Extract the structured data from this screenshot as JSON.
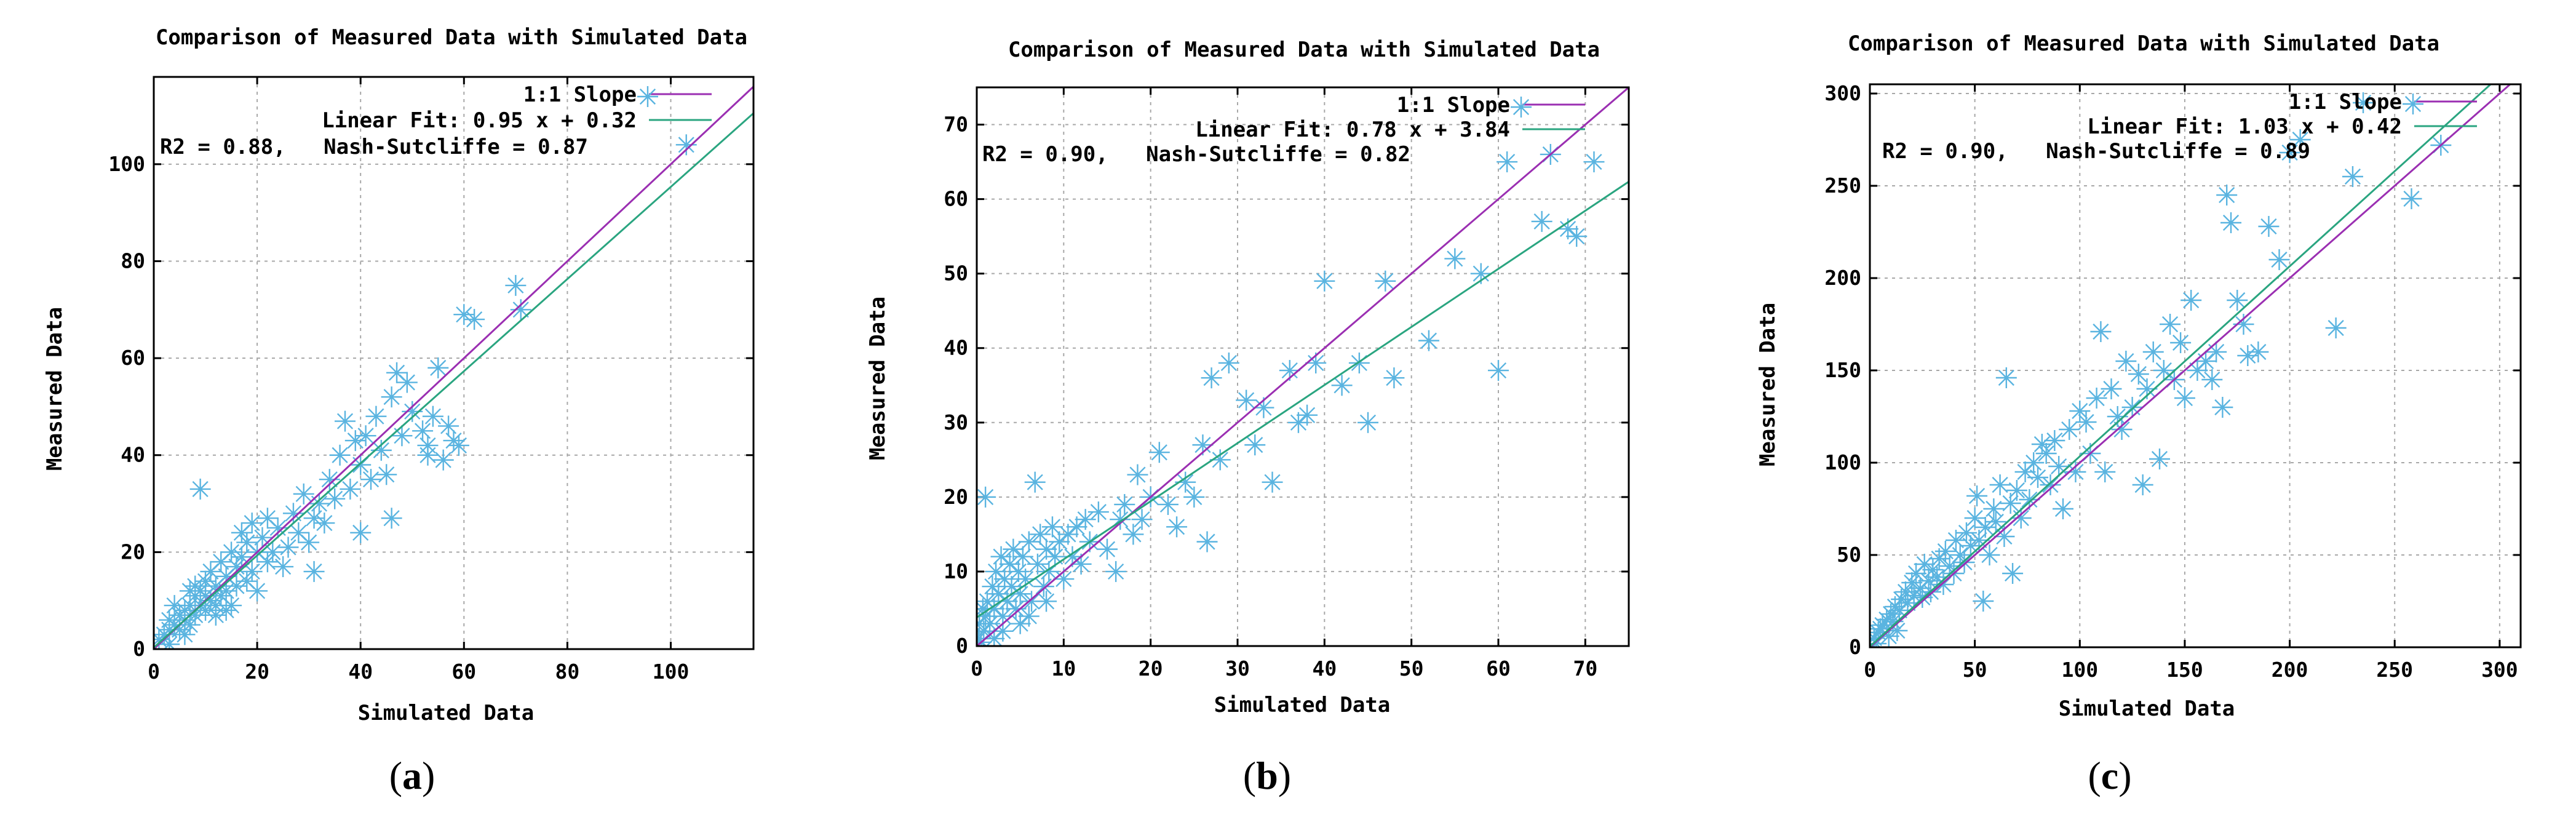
{
  "figure": {
    "panels": [
      "a",
      "b",
      "c"
    ],
    "captions": [
      {
        "open": "(",
        "letter": "a",
        "close": ")"
      },
      {
        "open": "(",
        "letter": "b",
        "close": ")"
      },
      {
        "open": "(",
        "letter": "c",
        "close": ")"
      }
    ]
  },
  "colors": {
    "scatter": "#5ab4e0",
    "slope_line": "#9b2fb2",
    "fit_line": "#2aa580",
    "grid": "#a8a8a8"
  },
  "chart_data": [
    {
      "type": "scatter",
      "title": "Comparison of Measured Data with Simulated Data",
      "xlabel": "Simulated Data",
      "ylabel": "Measured Data",
      "xlim": [
        0,
        116
      ],
      "ylim": [
        0,
        118
      ],
      "xticks": [
        0,
        20,
        40,
        60,
        80,
        100
      ],
      "yticks": [
        0,
        20,
        40,
        60,
        80,
        100
      ],
      "legend": [
        {
          "label": "1:1 Slope",
          "kind": "line",
          "color": "#9b2fb2"
        },
        {
          "label": "Linear Fit: 0.95 x + 0.32",
          "kind": "line",
          "color": "#2aa580"
        }
      ],
      "legend_marker_label": "1:1 Slope",
      "stats_text": "R2 = 0.88,   Nash-Sutcliffe = 0.87",
      "fit": {
        "slope": 0.95,
        "intercept": 0.32
      },
      "points": [
        [
          1,
          2
        ],
        [
          2,
          3
        ],
        [
          3,
          4
        ],
        [
          3,
          6
        ],
        [
          4,
          5
        ],
        [
          5,
          7
        ],
        [
          5,
          4
        ],
        [
          6,
          8
        ],
        [
          6,
          6
        ],
        [
          7,
          9
        ],
        [
          7,
          5
        ],
        [
          8,
          11
        ],
        [
          8,
          7
        ],
        [
          9,
          12
        ],
        [
          9,
          9
        ],
        [
          10,
          14
        ],
        [
          10,
          8
        ],
        [
          11,
          10
        ],
        [
          11,
          16
        ],
        [
          12,
          13
        ],
        [
          12,
          9
        ],
        [
          13,
          11
        ],
        [
          13,
          18
        ],
        [
          14,
          15
        ],
        [
          14,
          12
        ],
        [
          15,
          20
        ],
        [
          15,
          9
        ],
        [
          16,
          17
        ],
        [
          16,
          13
        ],
        [
          17,
          24
        ],
        [
          17,
          19
        ],
        [
          18,
          14
        ],
        [
          18,
          22
        ],
        [
          19,
          16
        ],
        [
          19,
          26
        ],
        [
          20,
          20
        ],
        [
          20,
          12
        ],
        [
          21,
          23
        ],
        [
          22,
          18
        ],
        [
          22,
          27
        ],
        [
          23,
          20
        ],
        [
          24,
          25
        ],
        [
          25,
          17
        ],
        [
          26,
          21
        ],
        [
          27,
          28
        ],
        [
          28,
          24
        ],
        [
          29,
          32
        ],
        [
          30,
          22
        ],
        [
          31,
          16
        ],
        [
          31,
          27
        ],
        [
          32,
          30
        ],
        [
          33,
          26
        ],
        [
          34,
          35
        ],
        [
          35,
          31
        ],
        [
          36,
          40
        ],
        [
          37,
          47
        ],
        [
          38,
          33
        ],
        [
          39,
          43
        ],
        [
          40,
          38
        ],
        [
          40,
          24
        ],
        [
          41,
          44
        ],
        [
          42,
          35
        ],
        [
          43,
          48
        ],
        [
          44,
          41
        ],
        [
          45,
          36
        ],
        [
          46,
          52
        ],
        [
          46,
          27
        ],
        [
          47,
          57
        ],
        [
          48,
          44
        ],
        [
          49,
          55
        ],
        [
          50,
          49
        ],
        [
          52,
          45
        ],
        [
          53,
          42
        ],
        [
          53,
          40
        ],
        [
          54,
          48
        ],
        [
          55,
          58
        ],
        [
          56,
          39
        ],
        [
          57,
          46
        ],
        [
          58,
          43
        ],
        [
          59,
          42
        ],
        [
          60,
          69
        ],
        [
          62,
          68
        ],
        [
          70,
          75
        ],
        [
          71,
          70
        ],
        [
          103,
          104
        ],
        [
          9,
          33
        ],
        [
          4,
          9
        ],
        [
          6,
          3
        ],
        [
          3,
          1
        ],
        [
          7,
          12
        ],
        [
          8,
          13
        ],
        [
          10,
          11
        ],
        [
          12,
          7
        ],
        [
          14,
          8
        ]
      ]
    },
    {
      "type": "scatter",
      "title": "Comparison of Measured Data with Simulated Data",
      "xlabel": "Simulated Data",
      "ylabel": "Measured Data",
      "xlim": [
        0,
        75
      ],
      "ylim": [
        0,
        75
      ],
      "xticks": [
        0,
        10,
        20,
        30,
        40,
        50,
        60,
        70
      ],
      "yticks": [
        0,
        10,
        20,
        30,
        40,
        50,
        60,
        70
      ],
      "legend": [
        {
          "label": "1:1 Slope",
          "kind": "line",
          "color": "#9b2fb2"
        },
        {
          "label": "Linear Fit: 0.78 x + 3.84",
          "kind": "line",
          "color": "#2aa580"
        }
      ],
      "legend_marker_label": "1:1 Slope",
      "stats_text": "R2 = 0.90,   Nash-Sutcliffe = 0.82",
      "fit": {
        "slope": 0.78,
        "intercept": 3.84
      },
      "points": [
        [
          0.2,
          1
        ],
        [
          0.3,
          3
        ],
        [
          0.5,
          0.5
        ],
        [
          0.7,
          5
        ],
        [
          0.8,
          2
        ],
        [
          1,
          4
        ],
        [
          1,
          20
        ],
        [
          1.2,
          6
        ],
        [
          1.5,
          3
        ],
        [
          1.8,
          8
        ],
        [
          2,
          5
        ],
        [
          2.2,
          10
        ],
        [
          2.5,
          7
        ],
        [
          2.8,
          12
        ],
        [
          3,
          4
        ],
        [
          3.2,
          9
        ],
        [
          3.5,
          6
        ],
        [
          3.8,
          11
        ],
        [
          4,
          8
        ],
        [
          4.2,
          13
        ],
        [
          4.5,
          5
        ],
        [
          4.8,
          10
        ],
        [
          5,
          7
        ],
        [
          5.3,
          12
        ],
        [
          5.6,
          9
        ],
        [
          6,
          14
        ],
        [
          6.3,
          6
        ],
        [
          6.7,
          22
        ],
        [
          7,
          11
        ],
        [
          7.3,
          15
        ],
        [
          7.7,
          8
        ],
        [
          8,
          13
        ],
        [
          8.3,
          10
        ],
        [
          8.7,
          16
        ],
        [
          9,
          12
        ],
        [
          9.5,
          14
        ],
        [
          10,
          9
        ],
        [
          10.5,
          15
        ],
        [
          11,
          12
        ],
        [
          11.5,
          16
        ],
        [
          12,
          11
        ],
        [
          12.5,
          17
        ],
        [
          13,
          14
        ],
        [
          14,
          18
        ],
        [
          15,
          13
        ],
        [
          16,
          10
        ],
        [
          16.5,
          17
        ],
        [
          17,
          19
        ],
        [
          18,
          15
        ],
        [
          18.5,
          23
        ],
        [
          19,
          17
        ],
        [
          20,
          20
        ],
        [
          21,
          26
        ],
        [
          22,
          19
        ],
        [
          23,
          16
        ],
        [
          24,
          22
        ],
        [
          25,
          20
        ],
        [
          26,
          27
        ],
        [
          26.5,
          14
        ],
        [
          27,
          36
        ],
        [
          28,
          25
        ],
        [
          29,
          38
        ],
        [
          31,
          33
        ],
        [
          32,
          27
        ],
        [
          33,
          32
        ],
        [
          34,
          22
        ],
        [
          36,
          37
        ],
        [
          37,
          30
        ],
        [
          38,
          31
        ],
        [
          39,
          38
        ],
        [
          40,
          49
        ],
        [
          42,
          35
        ],
        [
          44,
          38
        ],
        [
          45,
          30
        ],
        [
          47,
          49
        ],
        [
          48,
          36
        ],
        [
          52,
          41
        ],
        [
          55,
          52
        ],
        [
          58,
          50
        ],
        [
          60,
          37
        ],
        [
          61,
          65
        ],
        [
          65,
          57
        ],
        [
          66,
          66
        ],
        [
          68,
          56
        ],
        [
          69,
          55
        ],
        [
          71,
          65
        ],
        [
          2,
          1
        ],
        [
          3,
          2
        ],
        [
          5,
          3
        ],
        [
          6,
          4
        ],
        [
          8,
          6
        ]
      ]
    },
    {
      "type": "scatter",
      "title": "Comparison of Measured Data with Simulated Data",
      "xlabel": "Simulated Data",
      "ylabel": "Measured Data",
      "xlim": [
        0,
        310
      ],
      "ylim": [
        0,
        305
      ],
      "xticks": [
        0,
        50,
        100,
        150,
        200,
        250,
        300
      ],
      "yticks": [
        0,
        50,
        100,
        150,
        200,
        250,
        300
      ],
      "legend": [
        {
          "label": "1:1 Slope",
          "kind": "line",
          "color": "#9b2fb2"
        },
        {
          "label": "Linear Fit: 1.03 x + 0.42",
          "kind": "line",
          "color": "#2aa580"
        }
      ],
      "legend_marker_label": "1:1 Slope",
      "stats_text": "R2 = 0.90,   Nash-Sutcliffe = 0.89",
      "fit": {
        "slope": 1.03,
        "intercept": 0.42
      },
      "points": [
        [
          2,
          5
        ],
        [
          4,
          8
        ],
        [
          6,
          12
        ],
        [
          8,
          15
        ],
        [
          10,
          18
        ],
        [
          12,
          22
        ],
        [
          14,
          20
        ],
        [
          15,
          26
        ],
        [
          17,
          30
        ],
        [
          18,
          24
        ],
        [
          20,
          35
        ],
        [
          21,
          28
        ],
        [
          22,
          40
        ],
        [
          24,
          32
        ],
        [
          25,
          27
        ],
        [
          26,
          45
        ],
        [
          28,
          36
        ],
        [
          29,
          30
        ],
        [
          30,
          42
        ],
        [
          32,
          38
        ],
        [
          33,
          48
        ],
        [
          35,
          34
        ],
        [
          36,
          52
        ],
        [
          38,
          44
        ],
        [
          40,
          40
        ],
        [
          41,
          58
        ],
        [
          43,
          50
        ],
        [
          45,
          46
        ],
        [
          46,
          62
        ],
        [
          48,
          55
        ],
        [
          50,
          70
        ],
        [
          51,
          82
        ],
        [
          52,
          58
        ],
        [
          54,
          25
        ],
        [
          55,
          65
        ],
        [
          57,
          50
        ],
        [
          59,
          75
        ],
        [
          60,
          68
        ],
        [
          62,
          88
        ],
        [
          64,
          60
        ],
        [
          65,
          146
        ],
        [
          67,
          78
        ],
        [
          68,
          40
        ],
        [
          70,
          85
        ],
        [
          72,
          70
        ],
        [
          74,
          95
        ],
        [
          76,
          80
        ],
        [
          78,
          100
        ],
        [
          80,
          92
        ],
        [
          82,
          110
        ],
        [
          84,
          105
        ],
        [
          86,
          88
        ],
        [
          88,
          112
        ],
        [
          90,
          98
        ],
        [
          92,
          75
        ],
        [
          95,
          118
        ],
        [
          98,
          95
        ],
        [
          100,
          128
        ],
        [
          103,
          122
        ],
        [
          105,
          105
        ],
        [
          108,
          135
        ],
        [
          110,
          171
        ],
        [
          112,
          95
        ],
        [
          115,
          140
        ],
        [
          118,
          125
        ],
        [
          120,
          118
        ],
        [
          122,
          155
        ],
        [
          125,
          130
        ],
        [
          128,
          148
        ],
        [
          130,
          88
        ],
        [
          132,
          140
        ],
        [
          135,
          160
        ],
        [
          138,
          102
        ],
        [
          140,
          150
        ],
        [
          143,
          175
        ],
        [
          145,
          145
        ],
        [
          148,
          165
        ],
        [
          150,
          135
        ],
        [
          153,
          188
        ],
        [
          156,
          150
        ],
        [
          160,
          155
        ],
        [
          163,
          145
        ],
        [
          165,
          160
        ],
        [
          168,
          130
        ],
        [
          170,
          245
        ],
        [
          172,
          230
        ],
        [
          175,
          188
        ],
        [
          178,
          175
        ],
        [
          180,
          158
        ],
        [
          185,
          160
        ],
        [
          190,
          228
        ],
        [
          195,
          210
        ],
        [
          200,
          268
        ],
        [
          205,
          275
        ],
        [
          222,
          173
        ],
        [
          230,
          255
        ],
        [
          235,
          295
        ],
        [
          258,
          243
        ],
        [
          272,
          272
        ],
        [
          3,
          2
        ],
        [
          5,
          10
        ],
        [
          9,
          6
        ],
        [
          11,
          14
        ],
        [
          13,
          9
        ]
      ]
    }
  ]
}
